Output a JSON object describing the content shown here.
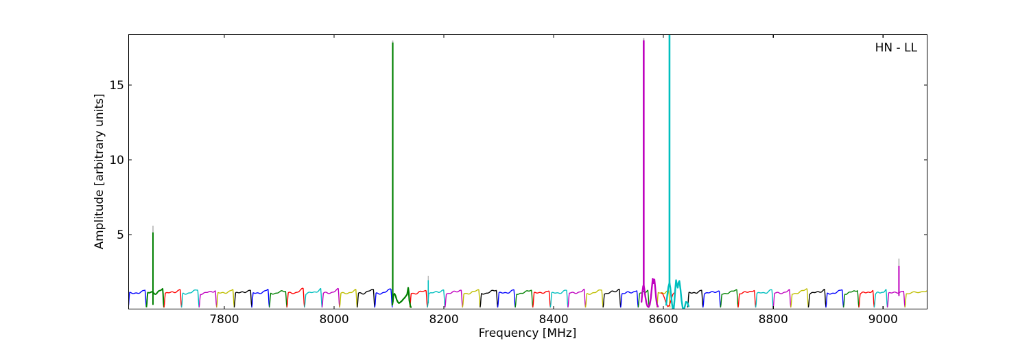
{
  "chart_data": {
    "type": "line",
    "corner_label": "HN - LL",
    "xlabel": "Frequency [MHz]",
    "ylabel": "Amplitude [arbitrary units]",
    "xlim": [
      7625,
      9081
    ],
    "ylim": [
      0,
      18.4
    ],
    "xticks": [
      7800,
      8000,
      8200,
      8400,
      8600,
      8800,
      9000
    ],
    "yticks": [
      5,
      10,
      15
    ],
    "grid": false,
    "legend": "none",
    "colors": {
      "b": "#0000ff",
      "g": "#008000",
      "r": "#ff0000",
      "c": "#00bfbf",
      "m": "#bf00bf",
      "y": "#bfbf00",
      "k": "#000000",
      "gray": "#b3b3b3",
      "axis": "#000000",
      "background": "#ffffff"
    },
    "subband_width_mhz": 32,
    "baseline_amplitude": 1.2,
    "subbands": [
      {
        "start": 7625,
        "end": 7658,
        "color": "b"
      },
      {
        "start": 7658,
        "end": 7690,
        "color": "g",
        "noisy": true
      },
      {
        "start": 7690,
        "end": 7722,
        "color": "r"
      },
      {
        "start": 7722,
        "end": 7754,
        "color": "c"
      },
      {
        "start": 7754,
        "end": 7786,
        "color": "m"
      },
      {
        "start": 7786,
        "end": 7818,
        "color": "y"
      },
      {
        "start": 7818,
        "end": 7850,
        "color": "k"
      },
      {
        "start": 7850,
        "end": 7882,
        "color": "b"
      },
      {
        "start": 7882,
        "end": 7914,
        "color": "g"
      },
      {
        "start": 7914,
        "end": 7946,
        "color": "r"
      },
      {
        "start": 7946,
        "end": 7978,
        "color": "c"
      },
      {
        "start": 7978,
        "end": 8010,
        "color": "m"
      },
      {
        "start": 8010,
        "end": 8042,
        "color": "y"
      },
      {
        "start": 8042,
        "end": 8074,
        "color": "k"
      },
      {
        "start": 8074,
        "end": 8106,
        "color": "b"
      },
      {
        "start": 8138,
        "end": 8170,
        "color": "r"
      },
      {
        "start": 8170,
        "end": 8202,
        "color": "c"
      },
      {
        "start": 8202,
        "end": 8234,
        "color": "m"
      },
      {
        "start": 8234,
        "end": 8266,
        "color": "y"
      },
      {
        "start": 8266,
        "end": 8298,
        "color": "k"
      },
      {
        "start": 8298,
        "end": 8330,
        "color": "b"
      },
      {
        "start": 8330,
        "end": 8362,
        "color": "g"
      },
      {
        "start": 8362,
        "end": 8394,
        "color": "r"
      },
      {
        "start": 8394,
        "end": 8426,
        "color": "c"
      },
      {
        "start": 8426,
        "end": 8458,
        "color": "m"
      },
      {
        "start": 8458,
        "end": 8490,
        "color": "y"
      },
      {
        "start": 8490,
        "end": 8522,
        "color": "k"
      },
      {
        "start": 8522,
        "end": 8554,
        "color": "b"
      },
      {
        "start": 8554,
        "end": 8574,
        "color": "g"
      },
      {
        "start": 8588,
        "end": 8612,
        "color": "y"
      },
      {
        "start": 8644,
        "end": 8672,
        "color": "k"
      },
      {
        "start": 8672,
        "end": 8704,
        "color": "b"
      },
      {
        "start": 8704,
        "end": 8736,
        "color": "g"
      },
      {
        "start": 8736,
        "end": 8768,
        "color": "r"
      },
      {
        "start": 8768,
        "end": 8800,
        "color": "c"
      },
      {
        "start": 8800,
        "end": 8832,
        "color": "m"
      },
      {
        "start": 8832,
        "end": 8864,
        "color": "y"
      },
      {
        "start": 8864,
        "end": 8896,
        "color": "k"
      },
      {
        "start": 8896,
        "end": 8928,
        "color": "b"
      },
      {
        "start": 8928,
        "end": 8956,
        "color": "g"
      },
      {
        "start": 8956,
        "end": 8984,
        "color": "r"
      },
      {
        "start": 8984,
        "end": 9008,
        "color": "c"
      },
      {
        "start": 9008,
        "end": 9040,
        "color": "m"
      },
      {
        "start": 9040,
        "end": 9084,
        "color": "y"
      }
    ],
    "custom_segments": [
      {
        "color": "g",
        "width": 2.2,
        "points": [
          [
            8106,
            0.3
          ],
          [
            8107,
            0.5
          ],
          [
            8108,
            0.95
          ],
          [
            8110,
            1.05
          ],
          [
            8112,
            0.9
          ],
          [
            8114,
            0.65
          ],
          [
            8116,
            0.5
          ],
          [
            8118,
            0.42
          ],
          [
            8120,
            0.46
          ],
          [
            8123,
            0.55
          ],
          [
            8126,
            0.68
          ],
          [
            8129,
            0.8
          ],
          [
            8131,
            0.9
          ],
          [
            8133,
            1.0
          ],
          [
            8135,
            1.45
          ],
          [
            8136,
            1.15
          ],
          [
            8137,
            0.6
          ],
          [
            8139,
            0.22
          ],
          [
            8140,
            0.15
          ]
        ]
      },
      {
        "color": "m",
        "width": 2.4,
        "points": [
          [
            8560,
            0.5
          ],
          [
            8561.5,
            1.1
          ],
          [
            8563,
            1.55
          ],
          [
            8564,
            1.62
          ],
          [
            8565,
            1.4
          ],
          [
            8567,
            0.85
          ],
          [
            8569,
            0.42
          ],
          [
            8571,
            0.2
          ],
          [
            8573,
            0.16
          ],
          [
            8575,
            0.3
          ],
          [
            8577,
            0.75
          ],
          [
            8579,
            1.5
          ],
          [
            8580.5,
            2.05
          ],
          [
            8582,
            1.75
          ],
          [
            8583.5,
            2.0
          ],
          [
            8585,
            1.45
          ],
          [
            8586.5,
            0.8
          ],
          [
            8588,
            0.35
          ],
          [
            8590,
            0.18
          ]
        ]
      },
      {
        "color": "r",
        "width": 1.4,
        "points": [
          [
            8596,
            1.1
          ],
          [
            8599,
            1.02
          ],
          [
            8602,
            0.75
          ],
          [
            8605,
            0.4
          ],
          [
            8608,
            0.18
          ],
          [
            8611,
            0.28
          ],
          [
            8614,
            0.65
          ],
          [
            8617,
            1.0
          ],
          [
            8620,
            1.12
          ]
        ]
      },
      {
        "color": "c",
        "width": 2.4,
        "points": [
          [
            8605,
            0.3
          ],
          [
            8607,
            0.95
          ],
          [
            8609,
            1.5
          ],
          [
            8611,
            1.78
          ],
          [
            8612.5,
            1.45
          ],
          [
            8614,
            0.9
          ],
          [
            8615.5,
            0.4
          ],
          [
            8617,
            0.05
          ],
          [
            8618.5,
            -0.05
          ],
          [
            8620,
            0.55
          ],
          [
            8621.5,
            1.35
          ],
          [
            8623,
            1.95
          ],
          [
            8624.5,
            1.65
          ],
          [
            8626,
            1.45
          ],
          [
            8627.5,
            1.8
          ],
          [
            8629,
            1.9
          ],
          [
            8631,
            1.35
          ],
          [
            8633,
            0.6
          ],
          [
            8635,
            0.12
          ],
          [
            8637,
            -0.08
          ],
          [
            8639,
            0.2
          ],
          [
            8641,
            0.5
          ],
          [
            8643.5,
            0.45
          ],
          [
            8646,
            0.2
          ]
        ]
      }
    ],
    "spikes": [
      {
        "freq": 7670,
        "base": 0.3,
        "peak": 5.15,
        "gray_peak": 5.6,
        "color": "g",
        "width": 2.0
      },
      {
        "freq": 8106.8,
        "base": 0.5,
        "peak": 17.85,
        "gray_peak": 17.98,
        "color": "g",
        "width": 2.2
      },
      {
        "freq": 8171.5,
        "base": 0.4,
        "peak": 1.95,
        "gray_peak": 2.25,
        "color": "c",
        "width": 1.6
      },
      {
        "freq": 8564,
        "base": 1.5,
        "peak": 18.0,
        "gray_peak": 18.15,
        "color": "m",
        "width": 2.6
      },
      {
        "freq": 8611,
        "base": 1.6,
        "peak": 18.4,
        "gray_peak": 18.4,
        "color": "c",
        "width": 2.6
      },
      {
        "freq": 9029,
        "base": 0.9,
        "peak": 2.9,
        "gray_peak": 3.4,
        "color": "m",
        "width": 2.0
      }
    ]
  }
}
